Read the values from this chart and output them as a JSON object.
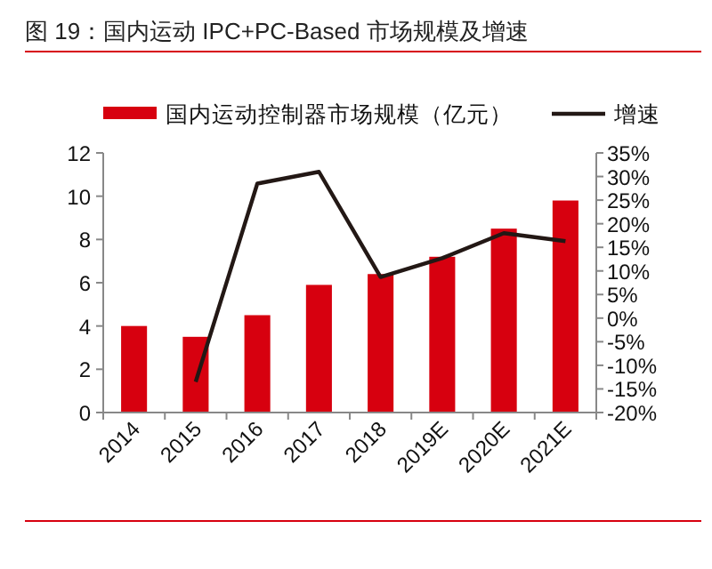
{
  "chart_data": {
    "type": "bar",
    "title": "图 19：国内运动 IPC+PC-Based 市场规模及增速",
    "categories": [
      "2014",
      "2015",
      "2016",
      "2017",
      "2018",
      "2019E",
      "2020E",
      "2021E"
    ],
    "series": [
      {
        "name": "国内运动控制器市场规模（亿元）",
        "color": "#d7000f",
        "values": [
          4.0,
          3.5,
          4.5,
          5.9,
          6.4,
          7.2,
          8.5,
          9.8
        ]
      },
      {
        "name": "增速",
        "type": "line",
        "axis": "y2",
        "color": "#231815",
        "values": [
          null,
          -13.5,
          28.5,
          31,
          8.7,
          12.7,
          18,
          16.3
        ]
      }
    ],
    "ylim": [
      0,
      12
    ],
    "yticks": [
      0,
      2,
      4,
      6,
      8,
      10,
      12
    ],
    "y2lim": [
      -20,
      35
    ],
    "y2ticks": [
      {
        "value": 35,
        "label": "35%"
      },
      {
        "value": 30,
        "label": "30%"
      },
      {
        "value": 25,
        "label": "25%"
      },
      {
        "value": 20,
        "label": "20%"
      },
      {
        "value": 15,
        "label": "15%"
      },
      {
        "value": 10,
        "label": "10%"
      },
      {
        "value": 5,
        "label": "5%"
      },
      {
        "value": 0,
        "label": "0%"
      },
      {
        "value": -5,
        "label": "-5%"
      },
      {
        "value": -10,
        "label": "-10%"
      },
      {
        "value": -15,
        "label": "-15%"
      },
      {
        "value": -20,
        "label": "-20%"
      }
    ],
    "legend": "top",
    "grid": false,
    "marker": "none",
    "line_style": "solid"
  }
}
